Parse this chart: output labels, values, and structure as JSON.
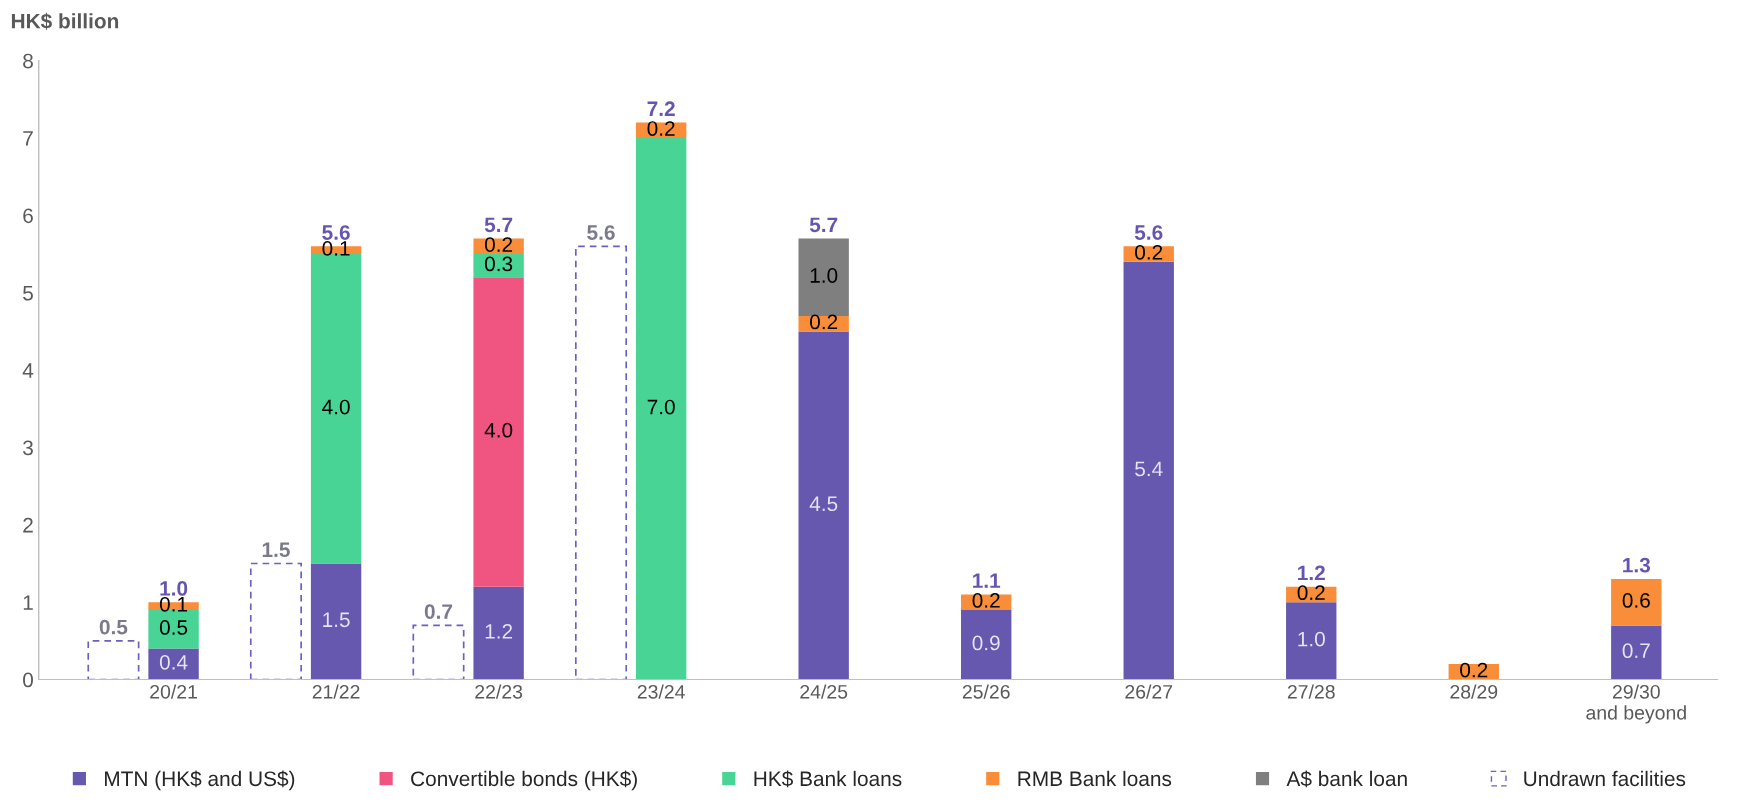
{
  "chart_data": [
    {
      "type": "bar",
      "stacked": true,
      "ylabel": "HK$ billion",
      "categories": [
        "20/21",
        "21/22",
        "22/23",
        "23/24",
        "24/25",
        "25/26",
        "26/27",
        "27/28",
        "28/29",
        "29/30\nand beyond"
      ],
      "ylim": [
        0,
        8
      ],
      "yticks": [
        0,
        1,
        2,
        3,
        4,
        5,
        6,
        7,
        8
      ],
      "legend": "bottom",
      "series": [
        {
          "name": "MTN (HK$ and US$)",
          "color": "#6558ae",
          "values": [
            0.4,
            1.5,
            1.2,
            null,
            4.5,
            0.9,
            5.4,
            1.0,
            null,
            0.7
          ],
          "value_labels": [
            "0.4",
            "1.5",
            "1.2",
            null,
            "4.5",
            "0.9",
            "5.4",
            "1.0",
            null,
            "0.7"
          ]
        },
        {
          "name": "Convertible bonds (HK$)",
          "color": "#ef5580",
          "values": [
            null,
            null,
            4.0,
            null,
            null,
            null,
            null,
            null,
            null,
            null
          ],
          "value_labels": [
            null,
            null,
            "4.0",
            null,
            null,
            null,
            null,
            null,
            null,
            null
          ]
        },
        {
          "name": "HK$ Bank loans",
          "color": "#48d494",
          "values": [
            0.5,
            4.0,
            0.3,
            7.0,
            null,
            null,
            null,
            null,
            null,
            null
          ],
          "value_labels": [
            "0.5",
            "4.0",
            "0.3",
            "7.0",
            null,
            null,
            null,
            null,
            null,
            null
          ]
        },
        {
          "name": "RMB Bank loans",
          "color": "#f98d3a",
          "values": [
            0.1,
            0.1,
            0.2,
            0.2,
            0.2,
            0.2,
            0.2,
            0.2,
            0.2,
            0.6
          ],
          "value_labels": [
            "0.1",
            "0.1",
            "0.2",
            "0.2",
            "0.2",
            "0.2",
            "0.2",
            "0.2",
            "0.2",
            "0.6"
          ]
        },
        {
          "name": "A$ bank loan",
          "color": "#7f7f7f",
          "values": [
            null,
            null,
            null,
            null,
            1.0,
            null,
            null,
            null,
            null,
            null
          ],
          "value_labels": [
            null,
            null,
            null,
            null,
            "1.0",
            null,
            null,
            null,
            null,
            null
          ]
        }
      ],
      "totals": [
        "1.0",
        "5.6",
        "5.7",
        "7.2",
        "5.7",
        "1.1",
        "5.6",
        "1.2",
        null,
        "1.3"
      ]
    },
    {
      "type": "bar",
      "categories": [
        null,
        null,
        null,
        null,
        null,
        null,
        null,
        null,
        null,
        null
      ],
      "ylim": [
        0,
        8
      ],
      "tick_labels": false,
      "legend": "bottom",
      "series": [
        {
          "name": "Undrawn facilities",
          "color": "#6b5fc0",
          "line_style": "dashed",
          "values": [
            0.5,
            1.5,
            0.7,
            5.6,
            null,
            null,
            null,
            null,
            null,
            null
          ],
          "value_labels": [
            "0.5",
            "1.5",
            "0.7",
            "5.6",
            null,
            null,
            null,
            null,
            null,
            null
          ]
        }
      ]
    }
  ]
}
